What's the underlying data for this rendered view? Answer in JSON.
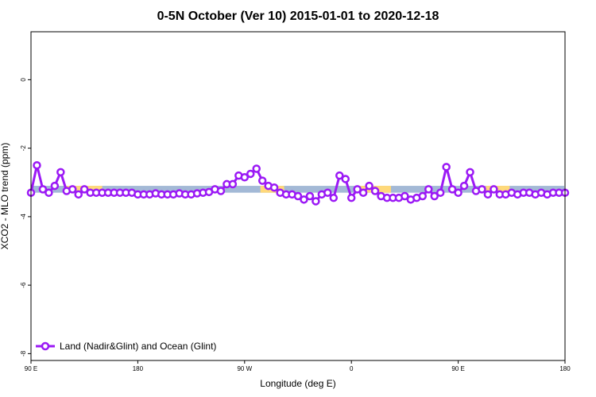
{
  "chart_data": {
    "type": "line",
    "title": "0-5N October (Ver 10)   2015-01-01 to 2020-12-18",
    "xlabel": "Longitude (deg E)",
    "ylabel": "XCO2 - MLO trend (ppm)",
    "xlim": [
      45,
      180
    ],
    "ylim": [
      -8.2,
      1.4
    ],
    "x_ticks": [
      {
        "value": 45,
        "label": "90 E"
      },
      {
        "value": 72,
        "label": "180"
      },
      {
        "value": 99,
        "label": "90 W"
      },
      {
        "value": 126,
        "label": "0"
      },
      {
        "value": 153,
        "label": "90 E"
      },
      {
        "value": 180,
        "label": "180"
      }
    ],
    "y_ticks": [
      {
        "value": 0,
        "label": "0"
      },
      {
        "value": -2,
        "label": "-2"
      },
      {
        "value": -4,
        "label": "-4"
      },
      {
        "value": -6,
        "label": "-6"
      },
      {
        "value": -8,
        "label": "-8"
      }
    ],
    "background_band": {
      "y_range": [
        -3.3,
        -3.1
      ],
      "color_land": "#ffd97a",
      "color_ocean": "#a3b9d6",
      "land_spans": [
        [
          53.5,
          63
        ],
        [
          103,
          109
        ],
        [
          128,
          136
        ],
        [
          160,
          166
        ]
      ]
    },
    "legend": {
      "position": "bottom-left",
      "entries": [
        "Land (Nadir&Glint) and Ocean (Glint)"
      ]
    },
    "series": [
      {
        "name": "Land (Nadir&Glint) and Ocean (Glint)",
        "color": "#9b19f5",
        "x": [
          45,
          46.5,
          48,
          49.5,
          51,
          52.5,
          54,
          55.5,
          57,
          58.5,
          60,
          61.5,
          63,
          64.5,
          66,
          67.5,
          69,
          70.5,
          72,
          73.5,
          75,
          76.5,
          78,
          79.5,
          81,
          82.5,
          84,
          85.5,
          87,
          88.5,
          90,
          91.5,
          93,
          94.5,
          96,
          97.5,
          99,
          100.5,
          102,
          103.5,
          105,
          106.5,
          108,
          109.5,
          111,
          112.5,
          114,
          115.5,
          117,
          118.5,
          120,
          121.5,
          123,
          124.5,
          126,
          127.5,
          129,
          130.5,
          132,
          133.5,
          135,
          136.5,
          138,
          139.5,
          141,
          142.5,
          144,
          145.5,
          147,
          148.5,
          150,
          151.5,
          153,
          154.5,
          156,
          157.5,
          159,
          160.5,
          162,
          163.5,
          165,
          166.5,
          168,
          169.5,
          171,
          172.5,
          174,
          175.5,
          177,
          178.5,
          180
        ],
        "values": [
          -3.3,
          -2.5,
          -3.2,
          -3.3,
          -3.1,
          -2.7,
          -3.25,
          -3.2,
          -3.35,
          -3.2,
          -3.3,
          -3.3,
          -3.3,
          -3.3,
          -3.3,
          -3.3,
          -3.3,
          -3.3,
          -3.35,
          -3.35,
          -3.35,
          -3.32,
          -3.35,
          -3.35,
          -3.35,
          -3.32,
          -3.35,
          -3.35,
          -3.32,
          -3.3,
          -3.28,
          -3.2,
          -3.25,
          -3.05,
          -3.05,
          -2.8,
          -2.85,
          -2.75,
          -2.6,
          -2.95,
          -3.1,
          -3.15,
          -3.3,
          -3.35,
          -3.35,
          -3.4,
          -3.5,
          -3.4,
          -3.55,
          -3.35,
          -3.3,
          -3.45,
          -2.8,
          -2.9,
          -3.45,
          -3.2,
          -3.3,
          -3.1,
          -3.25,
          -3.4,
          -3.45,
          -3.45,
          -3.45,
          -3.4,
          -3.5,
          -3.45,
          -3.4,
          -3.2,
          -3.4,
          -3.3,
          -2.55,
          -3.2,
          -3.3,
          -3.1,
          -2.7,
          -3.25,
          -3.2,
          -3.35,
          -3.2,
          -3.35,
          -3.35,
          -3.3,
          -3.35,
          -3.3,
          -3.3,
          -3.35,
          -3.3,
          -3.35,
          -3.3,
          -3.3,
          -3.3
        ]
      }
    ]
  }
}
